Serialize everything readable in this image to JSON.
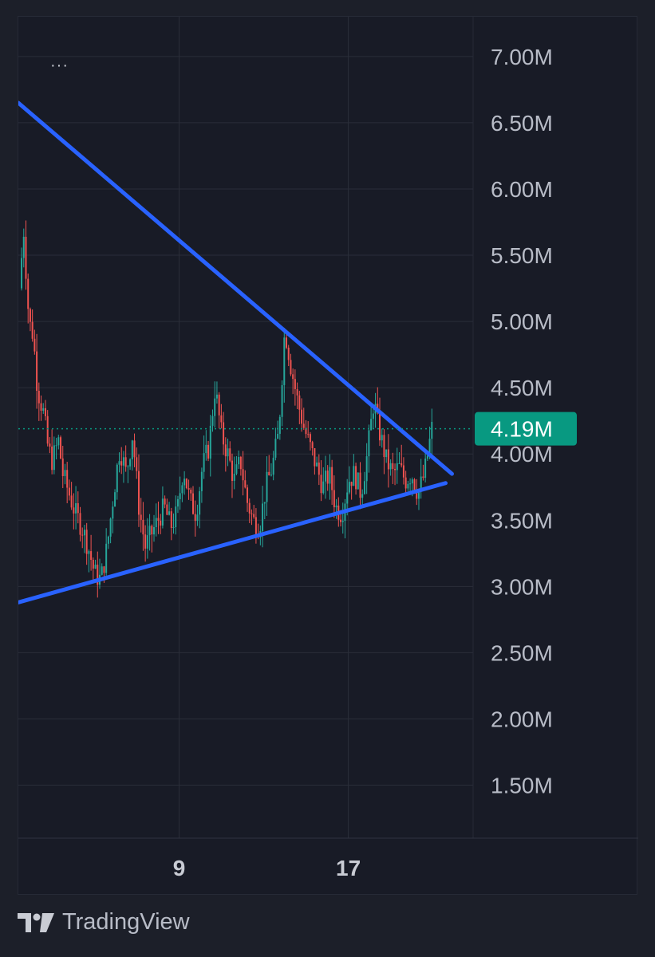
{
  "app": {
    "brand": "TradingView"
  },
  "toolbar": {
    "menu_glyph": "···"
  },
  "colors": {
    "up": "#26a69a",
    "down": "#ef5350",
    "trendline": "#2962ff",
    "price_badge": "#089981",
    "grid": "#2a2e39",
    "axis_text": "#b8bcc7"
  },
  "chart_data": {
    "type": "candlestick",
    "y_unit": "M",
    "ylim": [
      1.1,
      7.3
    ],
    "y_ticks": [
      1.5,
      2.0,
      2.5,
      3.0,
      3.5,
      4.0,
      4.5,
      5.0,
      5.5,
      6.0,
      6.5,
      7.0
    ],
    "y_tick_labels": [
      "1.50M",
      "2.00M",
      "2.50M",
      "3.00M",
      "3.50M",
      "4.00M",
      "4.50M",
      "5.00M",
      "5.50M",
      "6.00M",
      "6.50M",
      "7.00M"
    ],
    "x_ticks": [
      9,
      17
    ],
    "x_tick_labels": [
      "9",
      "17"
    ],
    "xlim": [
      1.4,
      22.9
    ],
    "grid": true,
    "last_price": 4.19,
    "last_price_label": "4.19M",
    "price_path": [
      [
        1.45,
        5.25
      ],
      [
        1.65,
        5.7
      ],
      [
        1.9,
        5.0
      ],
      [
        2.1,
        4.9
      ],
      [
        2.3,
        4.5
      ],
      [
        2.6,
        4.3
      ],
      [
        2.8,
        4.05
      ],
      [
        3.0,
        3.95
      ],
      [
        3.3,
        4.1
      ],
      [
        3.5,
        3.85
      ],
      [
        3.8,
        3.7
      ],
      [
        4.1,
        3.55
      ],
      [
        4.4,
        3.45
      ],
      [
        4.7,
        3.3
      ],
      [
        5.0,
        3.1
      ],
      [
        5.3,
        3.05
      ],
      [
        5.6,
        3.3
      ],
      [
        5.9,
        3.7
      ],
      [
        6.2,
        4.05
      ],
      [
        6.5,
        3.85
      ],
      [
        6.8,
        4.15
      ],
      [
        7.1,
        3.6
      ],
      [
        7.4,
        3.3
      ],
      [
        7.7,
        3.4
      ],
      [
        8.0,
        3.5
      ],
      [
        8.3,
        3.6
      ],
      [
        8.6,
        3.45
      ],
      [
        8.9,
        3.55
      ],
      [
        9.2,
        3.9
      ],
      [
        9.5,
        3.65
      ],
      [
        9.8,
        3.55
      ],
      [
        10.1,
        3.9
      ],
      [
        10.4,
        4.05
      ],
      [
        10.7,
        4.5
      ],
      [
        11.0,
        4.15
      ],
      [
        11.3,
        4.0
      ],
      [
        11.6,
        3.8
      ],
      [
        11.9,
        3.95
      ],
      [
        12.2,
        3.65
      ],
      [
        12.5,
        3.5
      ],
      [
        12.8,
        3.45
      ],
      [
        13.1,
        3.75
      ],
      [
        13.4,
        3.9
      ],
      [
        13.7,
        4.15
      ],
      [
        14.0,
        4.95
      ],
      [
        14.3,
        4.65
      ],
      [
        14.6,
        4.4
      ],
      [
        14.9,
        4.2
      ],
      [
        15.2,
        4.05
      ],
      [
        15.5,
        3.9
      ],
      [
        15.8,
        3.75
      ],
      [
        16.1,
        3.85
      ],
      [
        16.4,
        3.6
      ],
      [
        16.7,
        3.55
      ],
      [
        17.0,
        3.8
      ],
      [
        17.3,
        3.85
      ],
      [
        17.6,
        3.7
      ],
      [
        17.9,
        4.0
      ],
      [
        18.2,
        4.4
      ],
      [
        18.5,
        4.15
      ],
      [
        18.8,
        3.95
      ],
      [
        19.1,
        3.85
      ],
      [
        19.4,
        3.9
      ],
      [
        19.7,
        3.8
      ],
      [
        20.0,
        3.85
      ],
      [
        20.3,
        3.7
      ],
      [
        20.6,
        3.85
      ],
      [
        20.95,
        4.19
      ]
    ],
    "trendlines": [
      {
        "name": "descending resistance",
        "from": [
          1.4,
          6.65
        ],
        "to": [
          21.9,
          3.85
        ]
      },
      {
        "name": "ascending support",
        "from": [
          1.4,
          2.88
        ],
        "to": [
          21.6,
          3.78
        ]
      }
    ]
  }
}
